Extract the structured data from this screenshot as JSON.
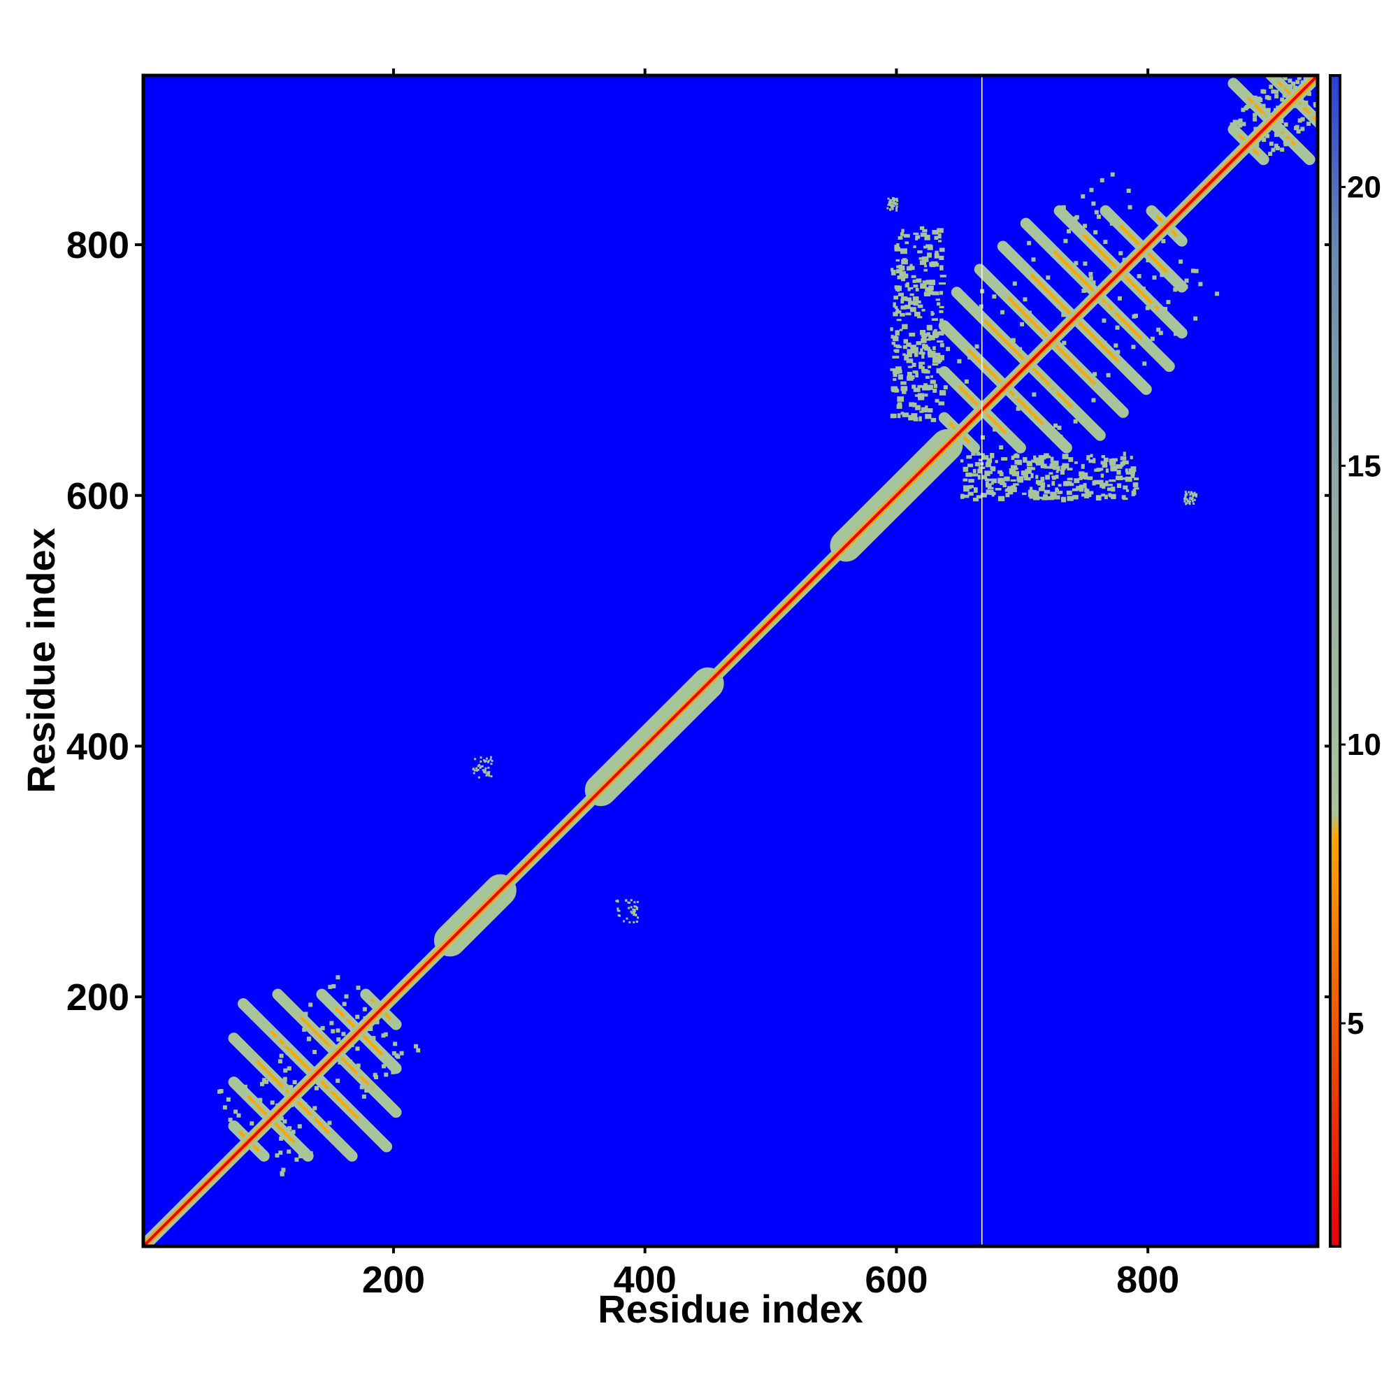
{
  "chart_data": {
    "type": "heatmap",
    "title": "",
    "xlabel": "Residue index",
    "ylabel": "Residue index",
    "xlim": [
      1,
      935
    ],
    "ylim": [
      1,
      935
    ],
    "x_ticks": [
      200,
      400,
      600,
      800
    ],
    "y_ticks": [
      200,
      400,
      600,
      800
    ],
    "x_tick_labels": [
      "200",
      "400",
      "600",
      "800"
    ],
    "y_tick_labels": [
      "200",
      "400",
      "600",
      "800"
    ],
    "grid": false,
    "background_color": "#0000ff",
    "colorbar": {
      "range": [
        1,
        22
      ],
      "ticks": [
        5,
        10,
        15,
        20
      ],
      "tick_labels": [
        "5",
        "10",
        "15",
        "20"
      ],
      "colors": [
        {
          "stop": 0.0,
          "color": "#e8000b"
        },
        {
          "stop": 0.2,
          "color": "#f25a00"
        },
        {
          "stop": 0.35,
          "color": "#ffa500"
        },
        {
          "stop": 0.37,
          "color": "#a8c49a"
        },
        {
          "stop": 0.65,
          "color": "#8fa8a6"
        },
        {
          "stop": 0.85,
          "color": "#6a8ab0"
        },
        {
          "stop": 1.0,
          "color": "#2a3fd8"
        }
      ]
    },
    "gap_line_at_x": 668,
    "diagonal": {
      "from": 1,
      "to": 935,
      "color": "#e8000b",
      "halo_color": "#a8c49a"
    },
    "contact_regions": [
      {
        "name": "N-domain",
        "x": [
          85,
          190
        ],
        "y": [
          85,
          190
        ],
        "type": "cross-hatch"
      },
      {
        "name": "band-250-280",
        "x": [
          245,
          285
        ],
        "y": [
          245,
          285
        ],
        "type": "diagonal-band"
      },
      {
        "name": "band-370-445",
        "x": [
          365,
          450
        ],
        "y": [
          365,
          450
        ],
        "type": "diagonal-band"
      },
      {
        "name": "band-560-640",
        "x": [
          560,
          640
        ],
        "y": [
          560,
          640
        ],
        "type": "diagonal-band"
      },
      {
        "name": "C-domain",
        "x": [
          650,
          815
        ],
        "y": [
          650,
          815
        ],
        "type": "cross-hatch"
      },
      {
        "name": "column-600-630",
        "x": [
          595,
          635
        ],
        "y": [
          660,
          815
        ],
        "type": "patch"
      },
      {
        "name": "row-600-630",
        "x": [
          650,
          790
        ],
        "y": [
          598,
          635
        ],
        "type": "patch"
      },
      {
        "name": "spot-265-385",
        "x": [
          262,
          278
        ],
        "y": [
          375,
          392
        ],
        "type": "sparse"
      },
      {
        "name": "spot-385-265",
        "x": [
          376,
          394
        ],
        "y": [
          260,
          278
        ],
        "type": "sparse"
      },
      {
        "name": "spot-597-833",
        "x": [
          592,
          600
        ],
        "y": [
          828,
          838
        ],
        "type": "sparse"
      },
      {
        "name": "spot-833-597",
        "x": [
          828,
          838
        ],
        "y": [
          594,
          604
        ],
        "type": "sparse"
      },
      {
        "name": "tail-900",
        "x": [
          880,
          935
        ],
        "y": [
          880,
          935
        ],
        "type": "cross-hatch"
      }
    ]
  }
}
